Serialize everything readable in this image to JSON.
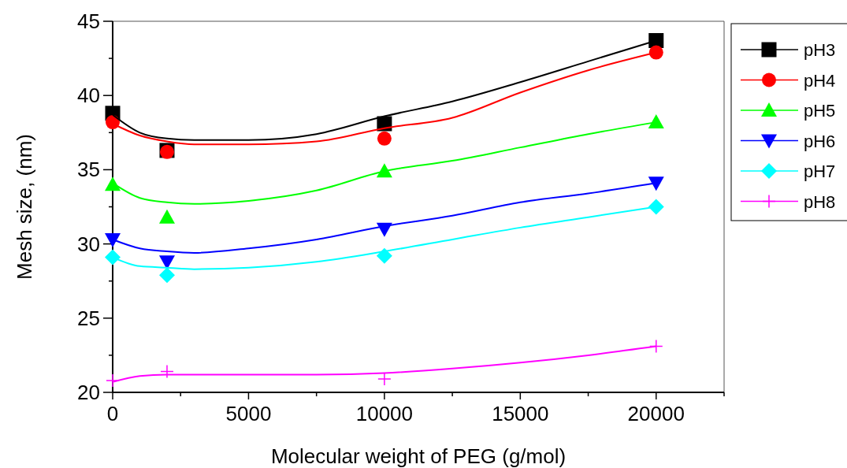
{
  "chart_data": {
    "type": "scatter",
    "xlabel": "Molecular weight of PEG (g/mol)",
    "ylabel": "Mesh size, (nm)",
    "x": [
      0,
      2000,
      10000,
      20000
    ],
    "xlim": [
      0,
      22500
    ],
    "xticks": [
      0,
      {
        "value": 2500,
        "label": null
      },
      5000,
      {
        "value": 7500,
        "label": null
      },
      10000,
      {
        "value": 12500,
        "label": null
      },
      15000,
      {
        "value": 17500,
        "label": null
      },
      20000,
      {
        "value": 22500,
        "label": null
      }
    ],
    "ylim": [
      20,
      45
    ],
    "yticks": [
      20,
      {
        "value": 22.5,
        "label": null
      },
      25,
      {
        "value": 27.5,
        "label": null
      },
      30,
      {
        "value": 32.5,
        "label": null
      },
      35,
      {
        "value": 37.5,
        "label": null
      },
      40,
      {
        "value": 42.5,
        "label": null
      },
      45
    ],
    "grid": false,
    "legend": "right",
    "series": [
      {
        "name": "pH3",
        "color": "#000000",
        "marker": "square",
        "values": [
          38.8,
          36.3,
          38.1,
          43.7
        ]
      },
      {
        "name": "pH4",
        "color": "#ff0000",
        "marker": "circle",
        "values": [
          38.2,
          36.2,
          37.1,
          42.9
        ]
      },
      {
        "name": "pH5",
        "color": "#00ff00",
        "marker": "triangle",
        "values": [
          34.0,
          31.8,
          34.9,
          38.2
        ]
      },
      {
        "name": "pH6",
        "color": "#0000ff",
        "marker": "triangle-down",
        "values": [
          30.3,
          28.8,
          31.0,
          34.1
        ]
      },
      {
        "name": "pH7",
        "color": "#00ffff",
        "marker": "diamond",
        "values": [
          29.1,
          27.9,
          29.2,
          32.5
        ]
      },
      {
        "name": "pH8",
        "color": "#ff00ff",
        "marker": "cross",
        "values": [
          20.8,
          21.4,
          20.9,
          23.1
        ]
      },
      {
        "type": "line",
        "color": "#000000",
        "x": [
          0,
          1000,
          2000,
          3000,
          5000,
          7500,
          10000,
          12500,
          15000,
          17500,
          20000
        ],
        "values": [
          38.7,
          37.5,
          37.1,
          37.0,
          37.0,
          37.4,
          38.6,
          39.6,
          40.9,
          42.3,
          43.7
        ]
      },
      {
        "type": "line",
        "color": "#ff0000",
        "x": [
          0,
          1000,
          2000,
          3000,
          5000,
          7500,
          10000,
          12500,
          15000,
          17500,
          20000
        ],
        "values": [
          38.1,
          37.3,
          36.9,
          36.7,
          36.7,
          36.9,
          37.8,
          38.5,
          40.2,
          41.7,
          42.9
        ]
      },
      {
        "type": "line",
        "color": "#00ff00",
        "x": [
          0,
          1000,
          2000,
          3000,
          5000,
          7500,
          10000,
          12500,
          15000,
          17500,
          20000
        ],
        "values": [
          34.1,
          33.1,
          32.8,
          32.7,
          32.9,
          33.6,
          34.9,
          35.6,
          36.5,
          37.4,
          38.2
        ]
      },
      {
        "type": "line",
        "color": "#0000ff",
        "x": [
          0,
          1000,
          2000,
          3000,
          5000,
          7500,
          10000,
          12500,
          15000,
          17500,
          20000
        ],
        "values": [
          30.3,
          29.7,
          29.5,
          29.4,
          29.7,
          30.3,
          31.2,
          31.9,
          32.8,
          33.4,
          34.1
        ]
      },
      {
        "type": "line",
        "color": "#00ffff",
        "x": [
          0,
          1000,
          2000,
          3000,
          5000,
          7500,
          10000,
          12500,
          15000,
          17500,
          20000
        ],
        "values": [
          29.1,
          28.5,
          28.4,
          28.3,
          28.4,
          28.8,
          29.5,
          30.3,
          31.1,
          31.8,
          32.5
        ]
      },
      {
        "type": "line",
        "color": "#ff00ff",
        "x": [
          0,
          1000,
          2000,
          3000,
          5000,
          7500,
          10000,
          12500,
          15000,
          17500,
          20000
        ],
        "values": [
          20.7,
          21.1,
          21.2,
          21.2,
          21.2,
          21.2,
          21.3,
          21.6,
          22.0,
          22.5,
          23.1
        ]
      }
    ]
  }
}
